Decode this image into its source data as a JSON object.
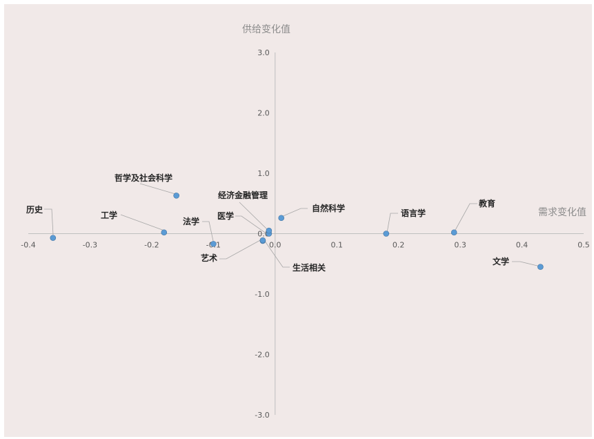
{
  "chart_data": {
    "type": "scatter",
    "title": "",
    "xlabel": "需求变化值",
    "ylabel": "供给变化值",
    "xlim": [
      -0.4,
      0.5
    ],
    "ylim": [
      -3.0,
      3.0
    ],
    "x_ticks": [
      "-0.4",
      "-0.3",
      "-0.2",
      "-0.1",
      "0.0",
      "0.1",
      "0.2",
      "0.3",
      "0.4",
      "0.5"
    ],
    "y_ticks": [
      "3.0",
      "2.0",
      "1.0",
      "0.0",
      "-1.0",
      "-2.0",
      "-3.0"
    ],
    "grid": false,
    "point_color": "#5b9bd5",
    "points": [
      {
        "label": "历史",
        "x": -0.36,
        "y": -0.07
      },
      {
        "label": "哲学及社会科学",
        "x": -0.16,
        "y": 0.63
      },
      {
        "label": "工学",
        "x": -0.18,
        "y": 0.02
      },
      {
        "label": "法学",
        "x": -0.1,
        "y": -0.17
      },
      {
        "label": "艺术",
        "x": -0.02,
        "y": -0.12
      },
      {
        "label": "医学",
        "x": -0.01,
        "y": 0.0
      },
      {
        "label": "经济金融管理",
        "x": -0.01,
        "y": 0.05
      },
      {
        "label": "生活相关",
        "x": -0.02,
        "y": -0.11
      },
      {
        "label": "自然科学",
        "x": 0.01,
        "y": 0.26
      },
      {
        "label": "语言学",
        "x": 0.18,
        "y": 0.0
      },
      {
        "label": "教育",
        "x": 0.29,
        "y": 0.02
      },
      {
        "label": "文学",
        "x": 0.43,
        "y": -0.55
      }
    ]
  }
}
